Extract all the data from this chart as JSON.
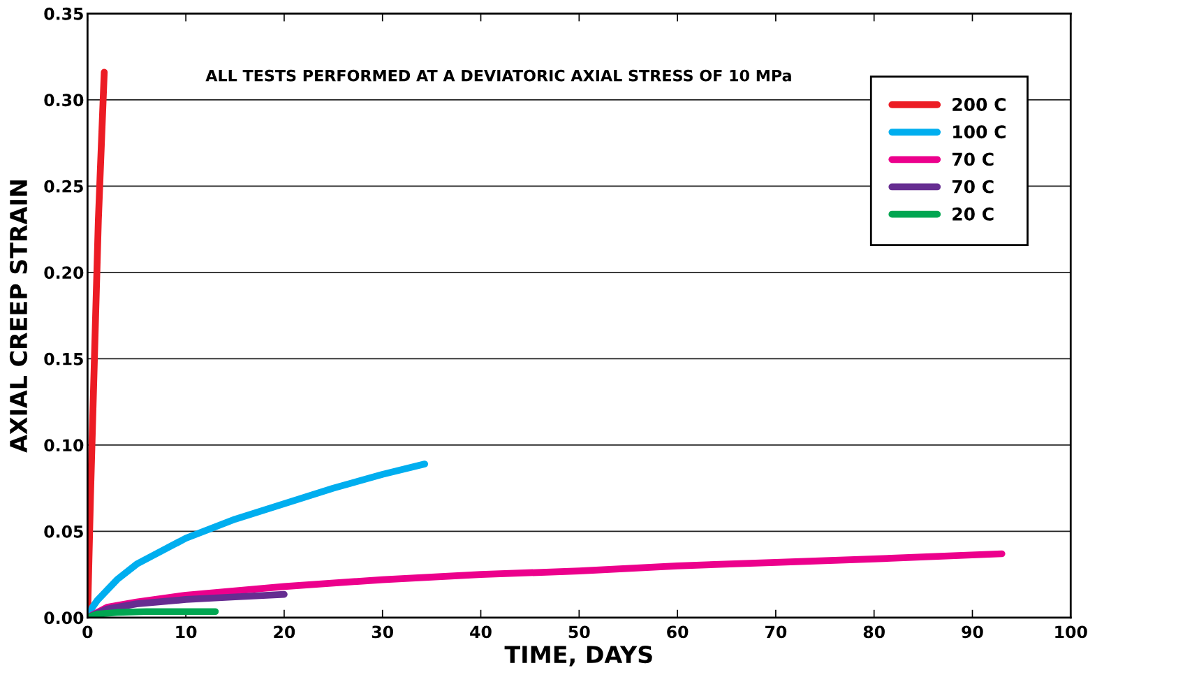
{
  "chart_data": {
    "type": "line",
    "xlabel": "TIME, DAYS",
    "ylabel": "AXIAL CREEP STRAIN",
    "annotations": [
      "ALL TESTS PERFORMED AT A DEVIATORIC AXIAL STRESS OF 10 MPa"
    ],
    "xlim": [
      0,
      100
    ],
    "xticks": [
      0,
      10,
      20,
      30,
      40,
      50,
      60,
      70,
      80,
      90,
      100
    ],
    "ylim": [
      0,
      0.35
    ],
    "yticks": [
      {
        "value": 0,
        "label": "0.00"
      },
      {
        "value": 0.05,
        "label": "0.05"
      },
      {
        "value": 0.1,
        "label": "0.10"
      },
      {
        "value": 0.15,
        "label": "0.15"
      },
      {
        "value": 0.2,
        "label": "0.20"
      },
      {
        "value": 0.25,
        "label": "0.25"
      },
      {
        "value": 0.3,
        "label": "0.30"
      },
      {
        "value": 0.35,
        "label": "0.35"
      }
    ],
    "grid": "y",
    "legend": "top right",
    "marker": "none",
    "line_style": "solid",
    "series": [
      {
        "name": "200 C",
        "color": "#ec1c24",
        "x": [
          0,
          0.3,
          0.7,
          1.1,
          1.7
        ],
        "values": [
          0,
          0.07,
          0.15,
          0.23,
          0.316
        ]
      },
      {
        "name": "100 C",
        "color": "#00aeef",
        "x": [
          0,
          0.5,
          1,
          3,
          5,
          10,
          15,
          20,
          25,
          30,
          34.3
        ],
        "values": [
          0,
          0.006,
          0.01,
          0.022,
          0.031,
          0.046,
          0.057,
          0.066,
          0.075,
          0.083,
          0.089
        ]
      },
      {
        "name": "70 C",
        "color": "#ec008c",
        "x": [
          0,
          2,
          5,
          10,
          20,
          30,
          40,
          50,
          60,
          70,
          80,
          93
        ],
        "values": [
          0,
          0.006,
          0.009,
          0.013,
          0.018,
          0.022,
          0.025,
          0.027,
          0.03,
          0.032,
          0.034,
          0.037
        ]
      },
      {
        "name": "70 C",
        "color": "#662d91",
        "x": [
          0,
          2,
          5,
          10,
          15,
          20
        ],
        "values": [
          0,
          0.005,
          0.008,
          0.0105,
          0.012,
          0.0135
        ]
      },
      {
        "name": "20 C",
        "color": "#00a651",
        "x": [
          0,
          1,
          3,
          6,
          13
        ],
        "values": [
          0,
          0.002,
          0.003,
          0.0035,
          0.0035
        ]
      }
    ]
  }
}
